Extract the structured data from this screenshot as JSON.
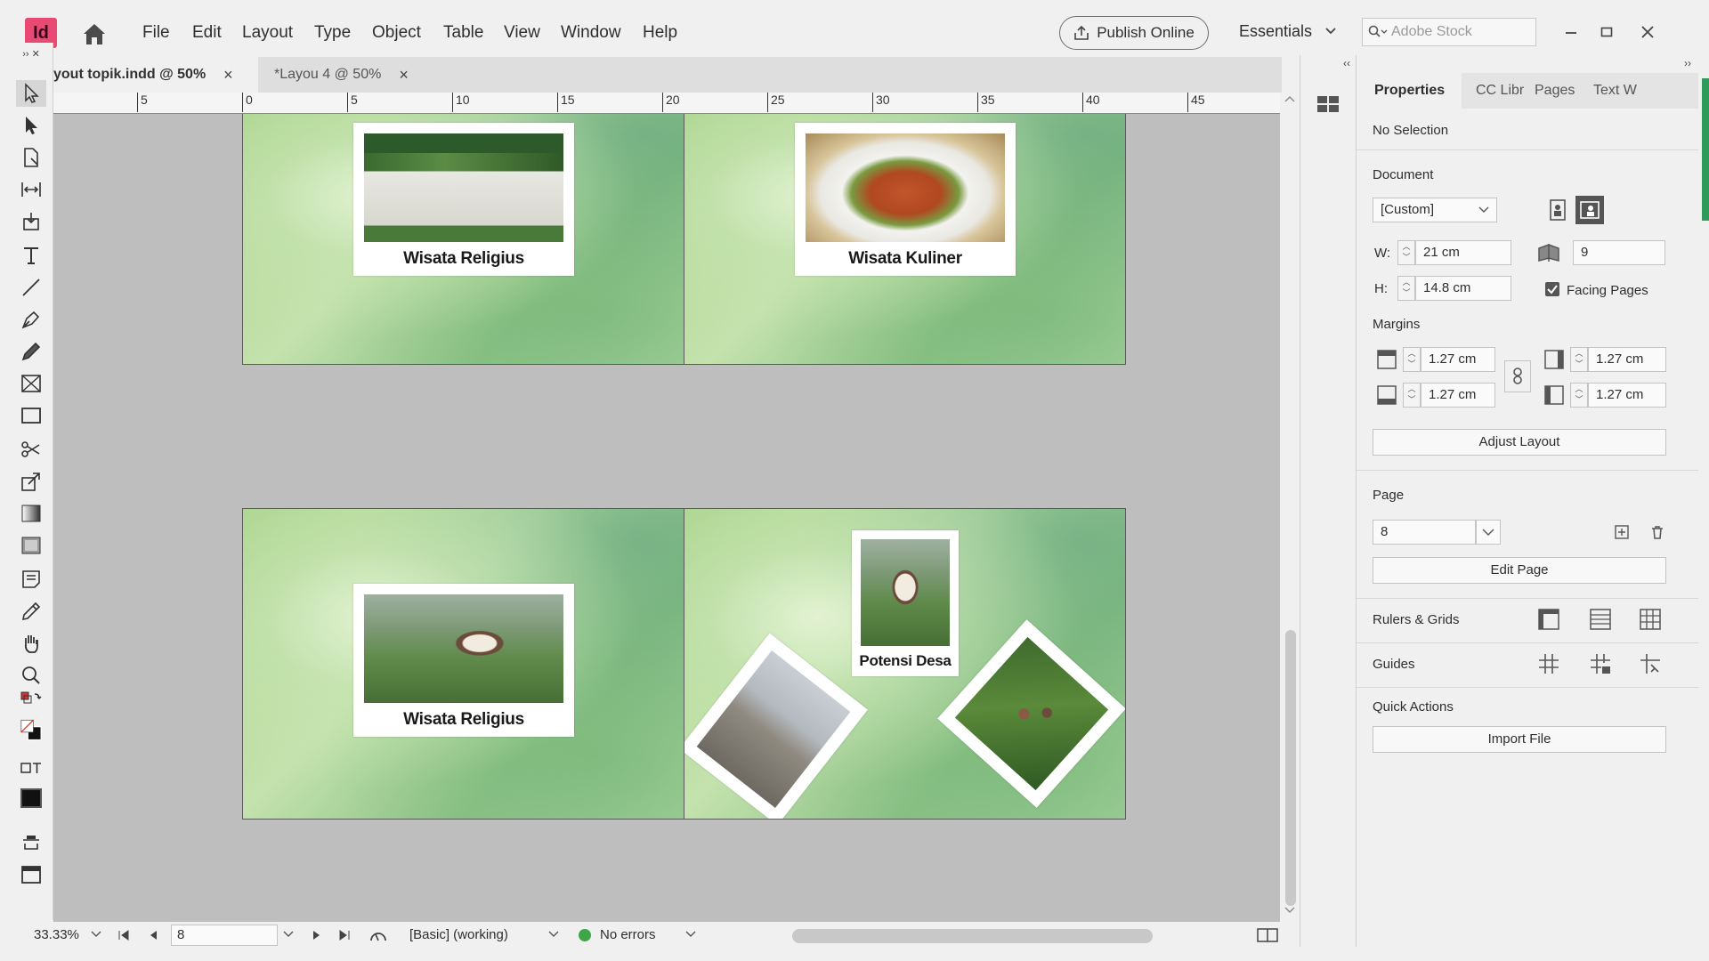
{
  "app": {
    "logo": "Id",
    "publish_label": "Publish Online",
    "workspace": "Essentials",
    "search_placeholder": "Adobe Stock"
  },
  "menu": [
    "File",
    "Edit",
    "Layout",
    "Type",
    "Object",
    "Table",
    "View",
    "Window",
    "Help"
  ],
  "doc_tabs": [
    {
      "label": "yout topik.indd @ 50%",
      "close": "×"
    },
    {
      "label": "*Layou 4 @ 50%",
      "close": "×"
    }
  ],
  "ruler_labels": [
    "5",
    "0",
    "5",
    "10",
    "15",
    "20",
    "25",
    "30",
    "35",
    "40",
    "45"
  ],
  "spreads": {
    "captions": [
      "Wisata Religius",
      "Wisata Kuliner",
      "Wisata Religius",
      "Potensi Desa"
    ]
  },
  "status": {
    "zoom": "33.33%",
    "page": "8",
    "preflight_profile": "[Basic] (working)",
    "errors": "No errors",
    "status_color": "#3fa648"
  },
  "panel": {
    "tabs": [
      "Properties",
      "CC Libr",
      "Pages",
      "Text W"
    ],
    "selection": "No Selection",
    "document_heading": "Document",
    "preset": "[Custom]",
    "width_label": "W:",
    "width": "21 cm",
    "height_label": "H:",
    "height": "14.8 cm",
    "pages_count": "9",
    "facing_pages": "Facing Pages",
    "margins_heading": "Margins",
    "margin_top": "1.27 cm",
    "margin_bottom": "1.27 cm",
    "margin_left": "1.27 cm",
    "margin_right": "1.27 cm",
    "adjust_layout": "Adjust Layout",
    "page_heading": "Page",
    "page_value": "8",
    "edit_page": "Edit Page",
    "rulers_grids": "Rulers & Grids",
    "guides": "Guides",
    "quick_actions": "Quick Actions",
    "import_file": "Import File"
  },
  "colors": {
    "accent": "#e84a74",
    "panel_accent": "#2e9b5b",
    "canvas": "#bebebe"
  }
}
